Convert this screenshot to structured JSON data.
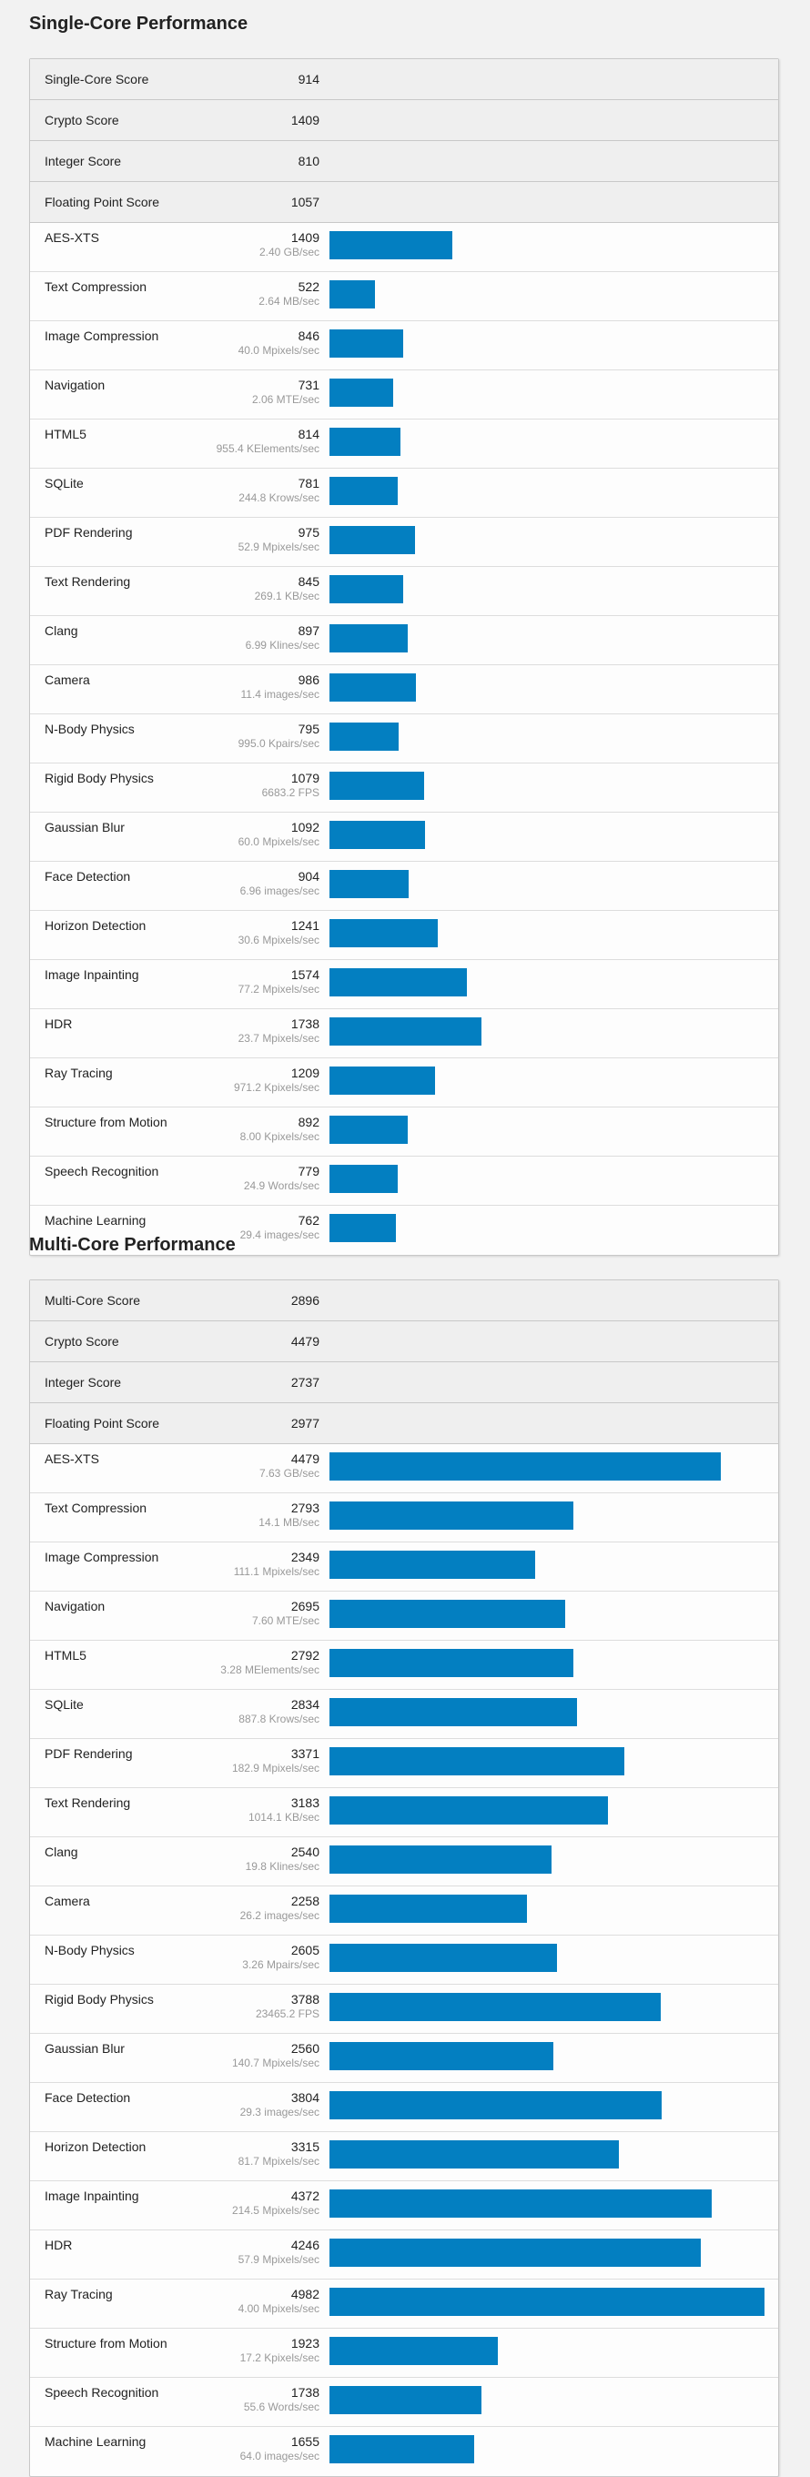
{
  "colors": {
    "bar": "#037fc1",
    "page_bg": "#f2f2f2",
    "summary_bg": "#efefef"
  },
  "bar_scale_max": 5000,
  "sections": [
    {
      "title": "Single-Core Performance",
      "summary": [
        {
          "label": "Single-Core Score",
          "value": "914"
        },
        {
          "label": "Crypto Score",
          "value": "1409"
        },
        {
          "label": "Integer Score",
          "value": "810"
        },
        {
          "label": "Floating Point Score",
          "value": "1057"
        }
      ],
      "benchmarks": [
        {
          "name": "AES-XTS",
          "score": 1409,
          "rate": "2.40 GB/sec"
        },
        {
          "name": "Text Compression",
          "score": 522,
          "rate": "2.64 MB/sec"
        },
        {
          "name": "Image Compression",
          "score": 846,
          "rate": "40.0 Mpixels/sec"
        },
        {
          "name": "Navigation",
          "score": 731,
          "rate": "2.06 MTE/sec"
        },
        {
          "name": "HTML5",
          "score": 814,
          "rate": "955.4 KElements/sec"
        },
        {
          "name": "SQLite",
          "score": 781,
          "rate": "244.8 Krows/sec"
        },
        {
          "name": "PDF Rendering",
          "score": 975,
          "rate": "52.9 Mpixels/sec"
        },
        {
          "name": "Text Rendering",
          "score": 845,
          "rate": "269.1 KB/sec"
        },
        {
          "name": "Clang",
          "score": 897,
          "rate": "6.99 Klines/sec"
        },
        {
          "name": "Camera",
          "score": 986,
          "rate": "11.4 images/sec"
        },
        {
          "name": "N-Body Physics",
          "score": 795,
          "rate": "995.0 Kpairs/sec"
        },
        {
          "name": "Rigid Body Physics",
          "score": 1079,
          "rate": "6683.2 FPS"
        },
        {
          "name": "Gaussian Blur",
          "score": 1092,
          "rate": "60.0 Mpixels/sec"
        },
        {
          "name": "Face Detection",
          "score": 904,
          "rate": "6.96 images/sec"
        },
        {
          "name": "Horizon Detection",
          "score": 1241,
          "rate": "30.6 Mpixels/sec"
        },
        {
          "name": "Image Inpainting",
          "score": 1574,
          "rate": "77.2 Mpixels/sec"
        },
        {
          "name": "HDR",
          "score": 1738,
          "rate": "23.7 Mpixels/sec"
        },
        {
          "name": "Ray Tracing",
          "score": 1209,
          "rate": "971.2 Kpixels/sec"
        },
        {
          "name": "Structure from Motion",
          "score": 892,
          "rate": "8.00 Kpixels/sec"
        },
        {
          "name": "Speech Recognition",
          "score": 779,
          "rate": "24.9 Words/sec"
        },
        {
          "name": "Machine Learning",
          "score": 762,
          "rate": "29.4 images/sec"
        }
      ]
    },
    {
      "title": "Multi-Core Performance",
      "summary": [
        {
          "label": "Multi-Core Score",
          "value": "2896"
        },
        {
          "label": "Crypto Score",
          "value": "4479"
        },
        {
          "label": "Integer Score",
          "value": "2737"
        },
        {
          "label": "Floating Point Score",
          "value": "2977"
        }
      ],
      "benchmarks": [
        {
          "name": "AES-XTS",
          "score": 4479,
          "rate": "7.63 GB/sec"
        },
        {
          "name": "Text Compression",
          "score": 2793,
          "rate": "14.1 MB/sec"
        },
        {
          "name": "Image Compression",
          "score": 2349,
          "rate": "111.1 Mpixels/sec"
        },
        {
          "name": "Navigation",
          "score": 2695,
          "rate": "7.60 MTE/sec"
        },
        {
          "name": "HTML5",
          "score": 2792,
          "rate": "3.28 MElements/sec"
        },
        {
          "name": "SQLite",
          "score": 2834,
          "rate": "887.8 Krows/sec"
        },
        {
          "name": "PDF Rendering",
          "score": 3371,
          "rate": "182.9 Mpixels/sec"
        },
        {
          "name": "Text Rendering",
          "score": 3183,
          "rate": "1014.1 KB/sec"
        },
        {
          "name": "Clang",
          "score": 2540,
          "rate": "19.8 Klines/sec"
        },
        {
          "name": "Camera",
          "score": 2258,
          "rate": "26.2 images/sec"
        },
        {
          "name": "N-Body Physics",
          "score": 2605,
          "rate": "3.26 Mpairs/sec"
        },
        {
          "name": "Rigid Body Physics",
          "score": 3788,
          "rate": "23465.2 FPS"
        },
        {
          "name": "Gaussian Blur",
          "score": 2560,
          "rate": "140.7 Mpixels/sec"
        },
        {
          "name": "Face Detection",
          "score": 3804,
          "rate": "29.3 images/sec"
        },
        {
          "name": "Horizon Detection",
          "score": 3315,
          "rate": "81.7 Mpixels/sec"
        },
        {
          "name": "Image Inpainting",
          "score": 4372,
          "rate": "214.5 Mpixels/sec"
        },
        {
          "name": "HDR",
          "score": 4246,
          "rate": "57.9 Mpixels/sec"
        },
        {
          "name": "Ray Tracing",
          "score": 4982,
          "rate": "4.00 Mpixels/sec"
        },
        {
          "name": "Structure from Motion",
          "score": 1923,
          "rate": "17.2 Kpixels/sec"
        },
        {
          "name": "Speech Recognition",
          "score": 1738,
          "rate": "55.6 Words/sec"
        },
        {
          "name": "Machine Learning",
          "score": 1655,
          "rate": "64.0 images/sec"
        }
      ]
    }
  ]
}
